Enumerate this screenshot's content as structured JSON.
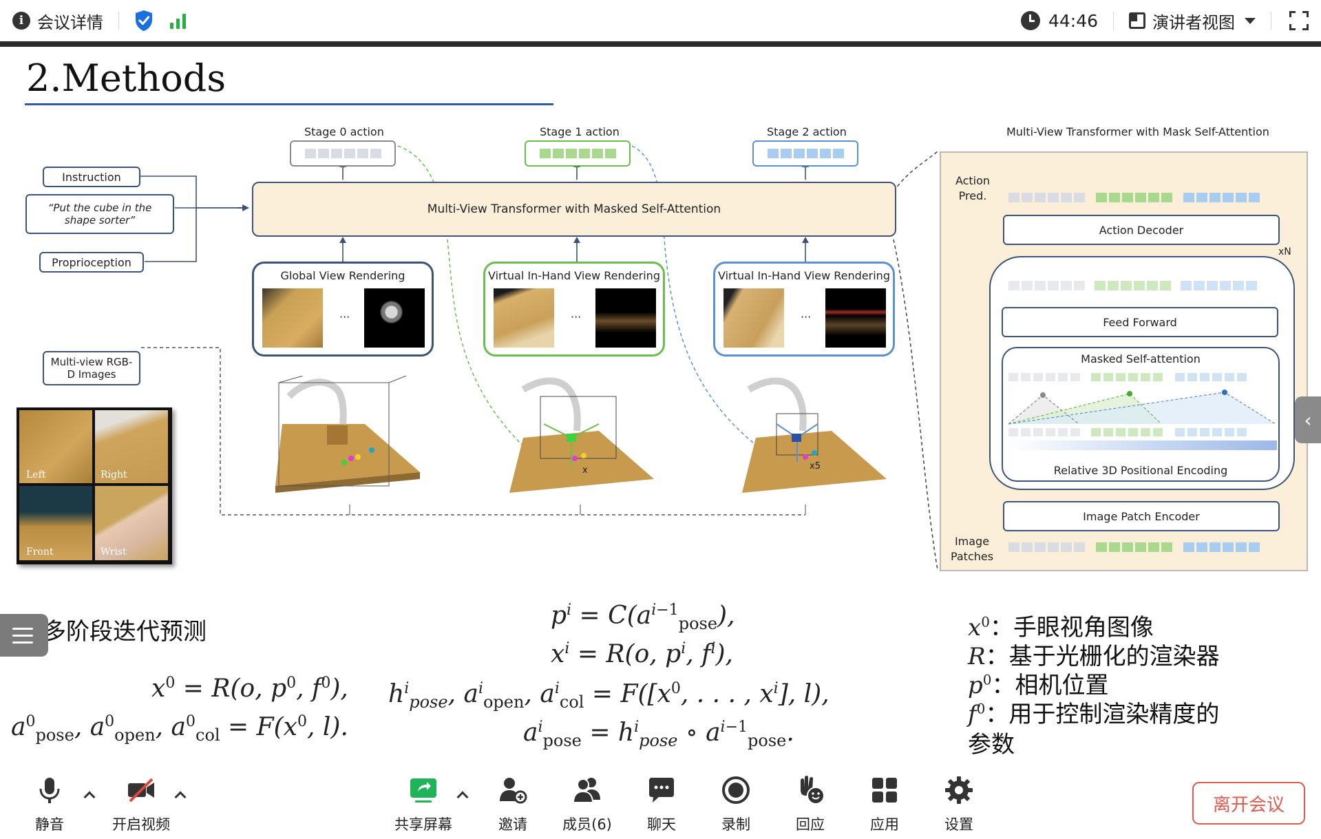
{
  "topbar": {
    "meeting_title": "会议详情",
    "timer": "44:46",
    "view_mode": "演讲者视图"
  },
  "slide": {
    "title": "2.Methods",
    "figure": {
      "stage0_label": "Stage 0 action",
      "stage1_label": "Stage 1 action",
      "stage2_label": "Stage 2 action",
      "panel_title": "Multi-View Transformer with Mask Self-Attention",
      "instruction": "Instruction",
      "quote": "“Put the cube in the shape sorter”",
      "proprioception": "Proprioception",
      "mvt": "Multi-View Transformer with Masked Self-Attention",
      "global_render": "Global View Rendering",
      "virtual_render_1": "Virtual In-Hand View Rendering",
      "virtual_render_2": "Virtual In-Hand View Rendering",
      "ellipsis": "···",
      "multiview_rgbd": "Multi-view RGB-D Images",
      "view_left": "Left",
      "view_right": "Right",
      "view_front": "Front",
      "view_wrist": "Wrist",
      "action_pred": "Action Pred.",
      "action_decoder": "Action Decoder",
      "xn": "xN",
      "feed_forward": "Feed Forward",
      "masked_attention": "Masked Self-attention",
      "pos_encoding": "Relative 3D Positional Encoding",
      "patch_encoder": "Image Patch Encoder",
      "image_patches": "Image Patches",
      "x_marker": "x",
      "x5_marker": "x5"
    },
    "heading": "多阶段迭代预测",
    "legend": {
      "line1": "：手眼视角图像",
      "line2": "：基于光栅化的渲染器",
      "line3": "：相机位置",
      "line4": "：用于控制渲染精度的",
      "line5": "参数"
    }
  },
  "toolbar": {
    "mute": "静音",
    "video": "开启视频",
    "share": "共享屏幕",
    "invite": "邀请",
    "members": "成员(6)",
    "chat": "聊天",
    "record": "录制",
    "react": "回应",
    "apps": "应用",
    "settings": "设置",
    "leave": "离开会议"
  },
  "colors": {
    "brand_blue": "#1a6fe0",
    "signal_green": "#25b043",
    "share_green": "#1fb35a",
    "leave_red": "#e05a4f",
    "token_gray": "#d9dde3",
    "token_green": "#a9d98e",
    "token_blue": "#a8cdf0"
  }
}
